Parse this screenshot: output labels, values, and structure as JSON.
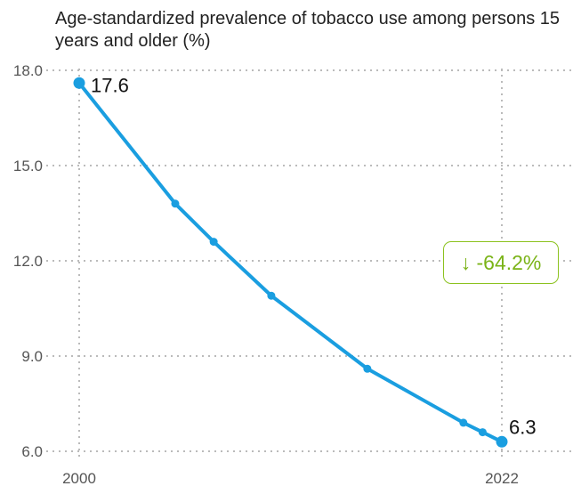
{
  "chart_data": {
    "type": "line",
    "title": "Age-standardized prevalence of tobacco use among persons 15 years and older (%)",
    "xlabel": "",
    "ylabel": "",
    "x": [
      2000,
      2005,
      2007,
      2010,
      2015,
      2020,
      2021,
      2022
    ],
    "series": [
      {
        "values": [
          17.6,
          13.8,
          12.6,
          10.9,
          8.6,
          6.9,
          6.6,
          6.3
        ]
      }
    ],
    "xlim": [
      2000,
      2022
    ],
    "ylim": [
      6.0,
      18.0
    ],
    "x_ticks": [
      {
        "value": 2000,
        "label": "2000"
      },
      {
        "value": 2022,
        "label": "2022"
      }
    ],
    "y_ticks": [
      {
        "value": 18.0,
        "label": "18.0"
      },
      {
        "value": 15.0,
        "label": "15.0"
      },
      {
        "value": 12.0,
        "label": "12.0"
      },
      {
        "value": 9.0,
        "label": "9.0"
      },
      {
        "value": 6.0,
        "label": "6.0"
      }
    ],
    "data_labels": [
      {
        "x": 2000,
        "y": 17.6,
        "text": "17.6"
      },
      {
        "x": 2022,
        "y": 6.3,
        "text": "6.3"
      }
    ],
    "annotation": {
      "text": "↓ -64.2%",
      "color": "#7ab317"
    },
    "grid": true,
    "line_color": "#1a9ee0"
  }
}
